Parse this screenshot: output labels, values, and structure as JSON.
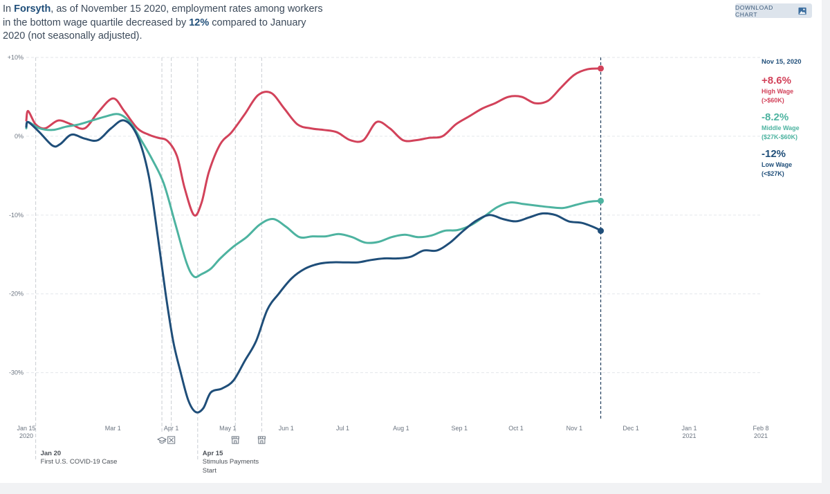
{
  "headline": {
    "prefix": "In ",
    "county": "Forsyth",
    "mid1": ", as of November 15 2020, employment rates among workers in the bottom wage quartile decreased by ",
    "change": "12%",
    "suffix": " compared to January 2020 (not seasonally adjusted)."
  },
  "download_button": {
    "label": "DOWNLOAD CHART",
    "icon": "image-icon"
  },
  "chart_data": {
    "type": "line",
    "title": "",
    "xlabel": "",
    "ylabel": "",
    "x_range": [
      "2020-01-15",
      "2021-02-08"
    ],
    "ylim": [
      -36,
      10
    ],
    "y_ticks": [
      {
        "value": 10,
        "label": "+10%"
      },
      {
        "value": 0,
        "label": "0%"
      },
      {
        "value": -10,
        "label": "-10%"
      },
      {
        "value": -20,
        "label": "-20%"
      },
      {
        "value": -30,
        "label": "-30%"
      }
    ],
    "x_ticks": [
      {
        "date": "2020-01-15",
        "label": "Jan 15",
        "sub": "2020"
      },
      {
        "date": "2020-03-01",
        "label": "Mar 1",
        "sub": ""
      },
      {
        "date": "2020-04-01",
        "label": "Apr 1",
        "sub": ""
      },
      {
        "date": "2020-05-01",
        "label": "May 1",
        "sub": ""
      },
      {
        "date": "2020-06-01",
        "label": "Jun 1",
        "sub": ""
      },
      {
        "date": "2020-07-01",
        "label": "Jul 1",
        "sub": ""
      },
      {
        "date": "2020-08-01",
        "label": "Aug 1",
        "sub": ""
      },
      {
        "date": "2020-09-01",
        "label": "Sep 1",
        "sub": ""
      },
      {
        "date": "2020-10-01",
        "label": "Oct 1",
        "sub": ""
      },
      {
        "date": "2020-11-01",
        "label": "Nov 1",
        "sub": ""
      },
      {
        "date": "2020-12-01",
        "label": "Dec 1",
        "sub": ""
      },
      {
        "date": "2021-01-01",
        "label": "Jan 1",
        "sub": "2021"
      },
      {
        "date": "2021-02-08",
        "label": "Feb 8",
        "sub": "2021"
      }
    ],
    "grid": true,
    "event_lines": [
      {
        "date": "2020-01-20",
        "label_date": "Jan 20",
        "label": [
          "First U.S. COVID-19 Case"
        ],
        "icon": ""
      },
      {
        "date": "2020-03-27",
        "label_date": "",
        "label": [],
        "icon": "school-icon"
      },
      {
        "date": "2020-04-01",
        "label_date": "",
        "label": [],
        "icon": "closed-box-icon"
      },
      {
        "date": "2020-04-15",
        "label_date": "Apr 15",
        "label": [
          "Stimulus Payments",
          "Start"
        ],
        "icon": ""
      },
      {
        "date": "2020-05-05",
        "label_date": "",
        "label": [],
        "icon": "storefront-icon"
      },
      {
        "date": "2020-05-19",
        "label_date": "",
        "label": [],
        "icon": "storefront-icon"
      }
    ],
    "end_marker": {
      "date": "2020-11-15",
      "label": "Nov 15, 2020"
    },
    "series": [
      {
        "name": "High Wage",
        "range_label": "(>$60K)",
        "end_label": "+8.6%",
        "color": "#d2425a",
        "x": [
          "2020-01-15",
          "2020-01-16",
          "2020-01-20",
          "2020-01-25",
          "2020-02-01",
          "2020-02-08",
          "2020-02-15",
          "2020-02-22",
          "2020-03-01",
          "2020-03-07",
          "2020-03-14",
          "2020-03-20",
          "2020-03-25",
          "2020-03-30",
          "2020-04-04",
          "2020-04-08",
          "2020-04-13",
          "2020-04-17",
          "2020-04-21",
          "2020-04-27",
          "2020-05-03",
          "2020-05-10",
          "2020-05-17",
          "2020-05-24",
          "2020-05-31",
          "2020-06-07",
          "2020-06-14",
          "2020-06-21",
          "2020-06-28",
          "2020-07-05",
          "2020-07-12",
          "2020-07-19",
          "2020-07-26",
          "2020-08-02",
          "2020-08-09",
          "2020-08-16",
          "2020-08-23",
          "2020-08-30",
          "2020-09-06",
          "2020-09-13",
          "2020-09-20",
          "2020-09-27",
          "2020-10-04",
          "2020-10-11",
          "2020-10-18",
          "2020-10-25",
          "2020-11-01",
          "2020-11-08",
          "2020-11-15"
        ],
        "values": [
          2.0,
          3.2,
          1.5,
          1.0,
          2.0,
          1.5,
          1.0,
          3.0,
          4.8,
          3.2,
          1.0,
          0.2,
          -0.2,
          -0.6,
          -2.5,
          -6.5,
          -10.0,
          -8.5,
          -4.5,
          -1.0,
          0.5,
          2.8,
          5.2,
          5.5,
          3.5,
          1.5,
          1.0,
          0.8,
          0.5,
          -0.5,
          -0.5,
          1.8,
          1.0,
          -0.5,
          -0.5,
          -0.2,
          0.0,
          1.5,
          2.5,
          3.5,
          4.2,
          5.0,
          5.0,
          4.2,
          4.5,
          6.2,
          7.8,
          8.5,
          8.6
        ]
      },
      {
        "name": "Middle Wage",
        "range_label": "($27K-$60K)",
        "end_label": "-8.2%",
        "color": "#4db3a0",
        "x": [
          "2020-01-15",
          "2020-01-16",
          "2020-01-22",
          "2020-01-29",
          "2020-02-05",
          "2020-02-12",
          "2020-02-19",
          "2020-02-26",
          "2020-03-04",
          "2020-03-10",
          "2020-03-16",
          "2020-03-22",
          "2020-03-28",
          "2020-04-03",
          "2020-04-09",
          "2020-04-13",
          "2020-04-17",
          "2020-04-22",
          "2020-04-27",
          "2020-05-04",
          "2020-05-11",
          "2020-05-18",
          "2020-05-25",
          "2020-06-01",
          "2020-06-08",
          "2020-06-15",
          "2020-06-22",
          "2020-06-29",
          "2020-07-06",
          "2020-07-13",
          "2020-07-20",
          "2020-07-27",
          "2020-08-03",
          "2020-08-10",
          "2020-08-17",
          "2020-08-24",
          "2020-08-31",
          "2020-09-07",
          "2020-09-14",
          "2020-09-21",
          "2020-09-28",
          "2020-10-05",
          "2020-10-12",
          "2020-10-19",
          "2020-10-26",
          "2020-11-02",
          "2020-11-09",
          "2020-11-15"
        ],
        "values": [
          1.0,
          1.8,
          1.0,
          0.8,
          1.2,
          1.5,
          2.0,
          2.5,
          2.8,
          1.8,
          -0.5,
          -3.0,
          -6.0,
          -11.0,
          -16.0,
          -17.8,
          -17.5,
          -16.8,
          -15.5,
          -14.0,
          -12.8,
          -11.2,
          -10.5,
          -11.5,
          -12.8,
          -12.7,
          -12.7,
          -12.4,
          -12.8,
          -13.5,
          -13.4,
          -12.8,
          -12.5,
          -12.8,
          -12.6,
          -12.0,
          -11.9,
          -11.3,
          -10.2,
          -9.0,
          -8.4,
          -8.6,
          -8.8,
          -9.0,
          -9.1,
          -8.7,
          -8.3,
          -8.2
        ]
      },
      {
        "name": "Low Wage",
        "range_label": "(<$27K)",
        "end_label": "-12%",
        "color": "#1f4e79",
        "x": [
          "2020-01-15",
          "2020-01-16",
          "2020-01-22",
          "2020-01-29",
          "2020-02-02",
          "2020-02-08",
          "2020-02-15",
          "2020-02-22",
          "2020-02-29",
          "2020-03-07",
          "2020-03-14",
          "2020-03-20",
          "2020-03-25",
          "2020-03-29",
          "2020-04-02",
          "2020-04-06",
          "2020-04-10",
          "2020-04-14",
          "2020-04-18",
          "2020-04-22",
          "2020-04-28",
          "2020-05-04",
          "2020-05-10",
          "2020-05-16",
          "2020-05-22",
          "2020-05-28",
          "2020-06-04",
          "2020-06-11",
          "2020-06-18",
          "2020-06-25",
          "2020-07-02",
          "2020-07-09",
          "2020-07-16",
          "2020-07-23",
          "2020-07-30",
          "2020-08-06",
          "2020-08-13",
          "2020-08-20",
          "2020-08-27",
          "2020-09-03",
          "2020-09-10",
          "2020-09-17",
          "2020-09-24",
          "2020-10-01",
          "2020-10-08",
          "2020-10-15",
          "2020-10-22",
          "2020-10-29",
          "2020-11-05",
          "2020-11-12",
          "2020-11-15"
        ],
        "values": [
          1.2,
          1.8,
          0.5,
          -1.2,
          -1.0,
          0.2,
          -0.3,
          -0.5,
          1.0,
          2.0,
          0.0,
          -5.0,
          -13.0,
          -20.0,
          -26.0,
          -30.0,
          -33.5,
          -35.0,
          -34.5,
          -32.5,
          -32.0,
          -31.0,
          -28.5,
          -26.0,
          -22.0,
          -20.0,
          -18.0,
          -16.8,
          -16.2,
          -16.0,
          -16.0,
          -16.0,
          -15.7,
          -15.5,
          -15.5,
          -15.3,
          -14.5,
          -14.5,
          -13.5,
          -12.0,
          -10.7,
          -10.0,
          -10.5,
          -10.8,
          -10.3,
          -9.8,
          -10.0,
          -10.8,
          -11.0,
          -11.6,
          -12.0
        ]
      }
    ]
  }
}
